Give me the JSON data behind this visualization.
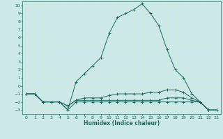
{
  "xlabel": "Humidex (Indice chaleur)",
  "ylabel": "",
  "bg_color": "#cce8e8",
  "grid_color": "#b8d8d8",
  "line_color": "#1a6b5a",
  "xlim": [
    -0.5,
    23.5
  ],
  "ylim": [
    -3.5,
    10.5
  ],
  "xticks": [
    0,
    1,
    2,
    3,
    4,
    5,
    6,
    7,
    8,
    9,
    10,
    11,
    12,
    13,
    14,
    15,
    16,
    17,
    18,
    19,
    20,
    21,
    22,
    23
  ],
  "yticks": [
    -3,
    -2,
    -1,
    0,
    1,
    2,
    3,
    4,
    5,
    6,
    7,
    8,
    9,
    10
  ],
  "line1_x": [
    0,
    1,
    2,
    3,
    4,
    5,
    6,
    7,
    8,
    9,
    10,
    11,
    12,
    13,
    14,
    15,
    16,
    17,
    18,
    19,
    20,
    21,
    22,
    23
  ],
  "line1_y": [
    -1,
    -1,
    -2,
    -2,
    -2,
    -3,
    -2,
    -2,
    -2,
    -2,
    -2,
    -2,
    -2,
    -2,
    -2,
    -2,
    -2,
    -2,
    -2,
    -2,
    -2,
    -2,
    -3,
    -3
  ],
  "line2_x": [
    0,
    1,
    2,
    3,
    4,
    5,
    6,
    7,
    8,
    9,
    10,
    11,
    12,
    13,
    14,
    15,
    16,
    17,
    18,
    19,
    20,
    21,
    22,
    23
  ],
  "line2_y": [
    -1,
    -1,
    -2,
    -2,
    -2,
    -2.5,
    -1.8,
    -1.8,
    -1.8,
    -1.8,
    -1.8,
    -1.8,
    -1.8,
    -1.8,
    -1.8,
    -1.8,
    -1.8,
    -1.5,
    -1.5,
    -1.5,
    -1.8,
    -2.0,
    -3,
    -3
  ],
  "line3_x": [
    0,
    1,
    2,
    3,
    4,
    5,
    6,
    7,
    8,
    9,
    10,
    11,
    12,
    13,
    14,
    15,
    16,
    17,
    18,
    19,
    20,
    21,
    22,
    23
  ],
  "line3_y": [
    -1,
    -1,
    -2,
    -2,
    -2,
    -2.5,
    -1.8,
    -1.5,
    -1.5,
    -1.5,
    -1.2,
    -1.0,
    -1.0,
    -1.0,
    -1.0,
    -0.8,
    -0.8,
    -0.5,
    -0.5,
    -0.8,
    -1.5,
    -2.0,
    -3,
    -3
  ],
  "main_x": [
    0,
    1,
    2,
    3,
    4,
    5,
    6,
    7,
    8,
    9,
    10,
    11,
    12,
    13,
    14,
    15,
    16,
    17,
    18,
    19,
    20,
    21,
    22,
    23
  ],
  "main_y": [
    -1,
    -1,
    -2,
    -2,
    -2,
    -3,
    0.5,
    1.5,
    2.5,
    3.5,
    6.5,
    8.5,
    9.0,
    9.5,
    10.2,
    9.0,
    7.5,
    4.5,
    2,
    1.0,
    -1,
    -2,
    -3,
    -3
  ]
}
